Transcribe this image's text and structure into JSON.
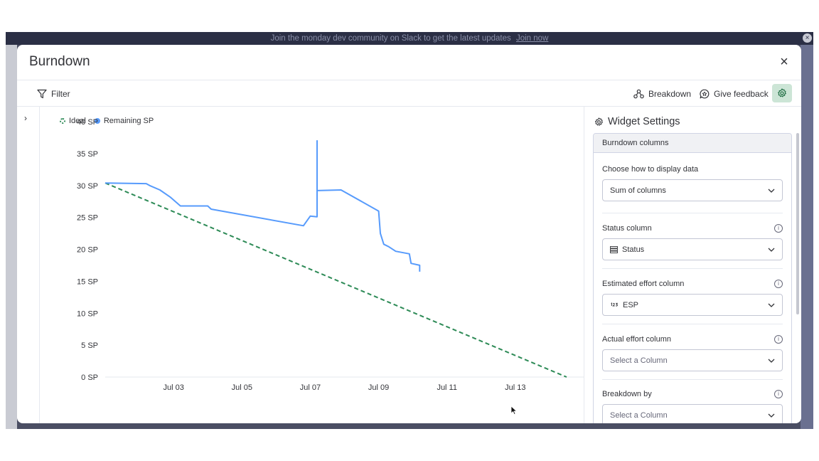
{
  "banner": {
    "text": "Join the monday dev community on Slack to get the latest updates",
    "link": "Join now",
    "close": "×"
  },
  "modal": {
    "title": "Burndown",
    "close": "×"
  },
  "toolbar": {
    "filter": "Filter",
    "breakdown": "Breakdown",
    "feedback": "Give feedback"
  },
  "legend": {
    "ideal": "Ideal",
    "remaining": "Remaining SP"
  },
  "chart_data": {
    "type": "line",
    "ylim": [
      0,
      40
    ],
    "yticks": [
      "0 SP",
      "5 SP",
      "10 SP",
      "15 SP",
      "20 SP",
      "25 SP",
      "30 SP",
      "35 SP",
      "40 SP"
    ],
    "xticks": [
      "Jul 03",
      "Jul 05",
      "Jul 07",
      "Jul 09",
      "Jul 11",
      "Jul 13"
    ],
    "xdomain": [
      "Jul 01",
      "Jul 15"
    ],
    "series": [
      {
        "name": "Ideal",
        "color": "#2e8b57",
        "style": "dashed",
        "x": [
          "Jul 01",
          "Jul 14.5"
        ],
        "y": [
          30.4,
          0
        ]
      },
      {
        "name": "Remaining SP",
        "color": "#579bfc",
        "style": "solid",
        "x": [
          "Jul 01",
          "Jul 02.2",
          "Jul 02.3",
          "Jul 02.6",
          "Jul 02.9",
          "Jul 03.2",
          "Jul 04",
          "Jul 04.1",
          "Jul 06.8",
          "Jul 07",
          "Jul 07.2",
          "Jul 07.2",
          "Jul 07.2",
          "Jul 07.9",
          "Jul 09.0",
          "Jul 09.05",
          "Jul 09.15",
          "Jul 09.3",
          "Jul 09.5",
          "Jul 09.9",
          "Jul 09.95",
          "Jul 10.2",
          "Jul 10.2"
        ],
        "y": [
          30.4,
          30.3,
          30.0,
          29.3,
          28.2,
          26.8,
          26.8,
          26.3,
          23.7,
          25.2,
          25.1,
          37.0,
          29.2,
          29.3,
          26.0,
          22.5,
          20.8,
          20.4,
          19.7,
          19.3,
          17.8,
          17.5,
          16.5
        ]
      }
    ]
  },
  "panel": {
    "title": "Widget Settings",
    "section": "Burndown columns",
    "fields": [
      {
        "label": "Choose how to display data",
        "value": "Sum of columns",
        "info": false
      },
      {
        "label": "Status column",
        "value": "Status",
        "info": true
      },
      {
        "label": "Estimated effort column",
        "value": "ESP",
        "info": true
      },
      {
        "label": "Actual effort column",
        "value": "Select a Column",
        "info": true
      },
      {
        "label": "Breakdown by",
        "value": "Select a Column",
        "info": true
      }
    ]
  }
}
